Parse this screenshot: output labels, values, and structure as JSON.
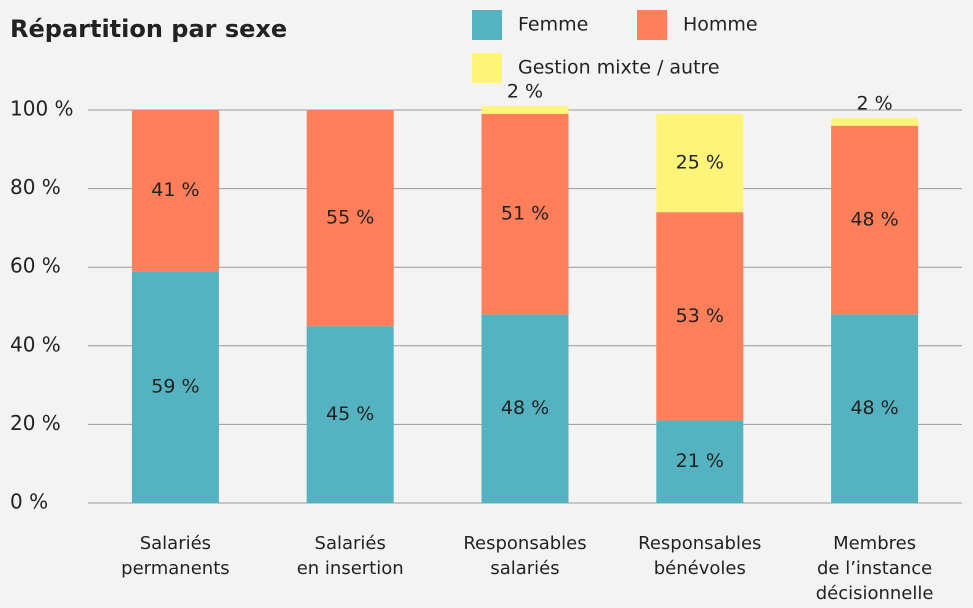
{
  "chart_data": {
    "type": "stacked_bar",
    "title": "Répartition par sexe",
    "categories": [
      [
        "Salariés",
        "permanents"
      ],
      [
        "Salariés",
        "en insertion"
      ],
      [
        "Responsables",
        "salariés"
      ],
      [
        "Responsables",
        "bénévoles"
      ],
      [
        "Membres",
        "de l’instance",
        "décisionnelle"
      ]
    ],
    "series": [
      {
        "name": "Femme",
        "color": "#55b2c0",
        "values": [
          59,
          45,
          48,
          21,
          48
        ],
        "value_labels": [
          "59 %",
          "45 %",
          "48 %",
          "21 %",
          "48 %"
        ]
      },
      {
        "name": "Homme",
        "color": "#ff7f5a",
        "values": [
          41,
          55,
          51,
          53,
          48
        ],
        "value_labels": [
          "41 %",
          "55 %",
          "51 %",
          "53 %",
          "48 %"
        ]
      },
      {
        "name": "Gestion mixte / autre",
        "color": "#fff47a",
        "values": [
          null,
          null,
          2,
          25,
          2
        ],
        "value_labels": [
          null,
          null,
          "2 %",
          "25 %",
          "2 %"
        ]
      }
    ],
    "ylim": [
      0,
      100
    ],
    "yticks": [
      {
        "value": 0,
        "label": "0 %"
      },
      {
        "value": 20,
        "label": "20 %"
      },
      {
        "value": 40,
        "label": "40 %"
      },
      {
        "value": 60,
        "label": "60 %"
      },
      {
        "value": 80,
        "label": "80 %"
      },
      {
        "value": 100,
        "label": "100 %"
      }
    ],
    "grid": true
  }
}
